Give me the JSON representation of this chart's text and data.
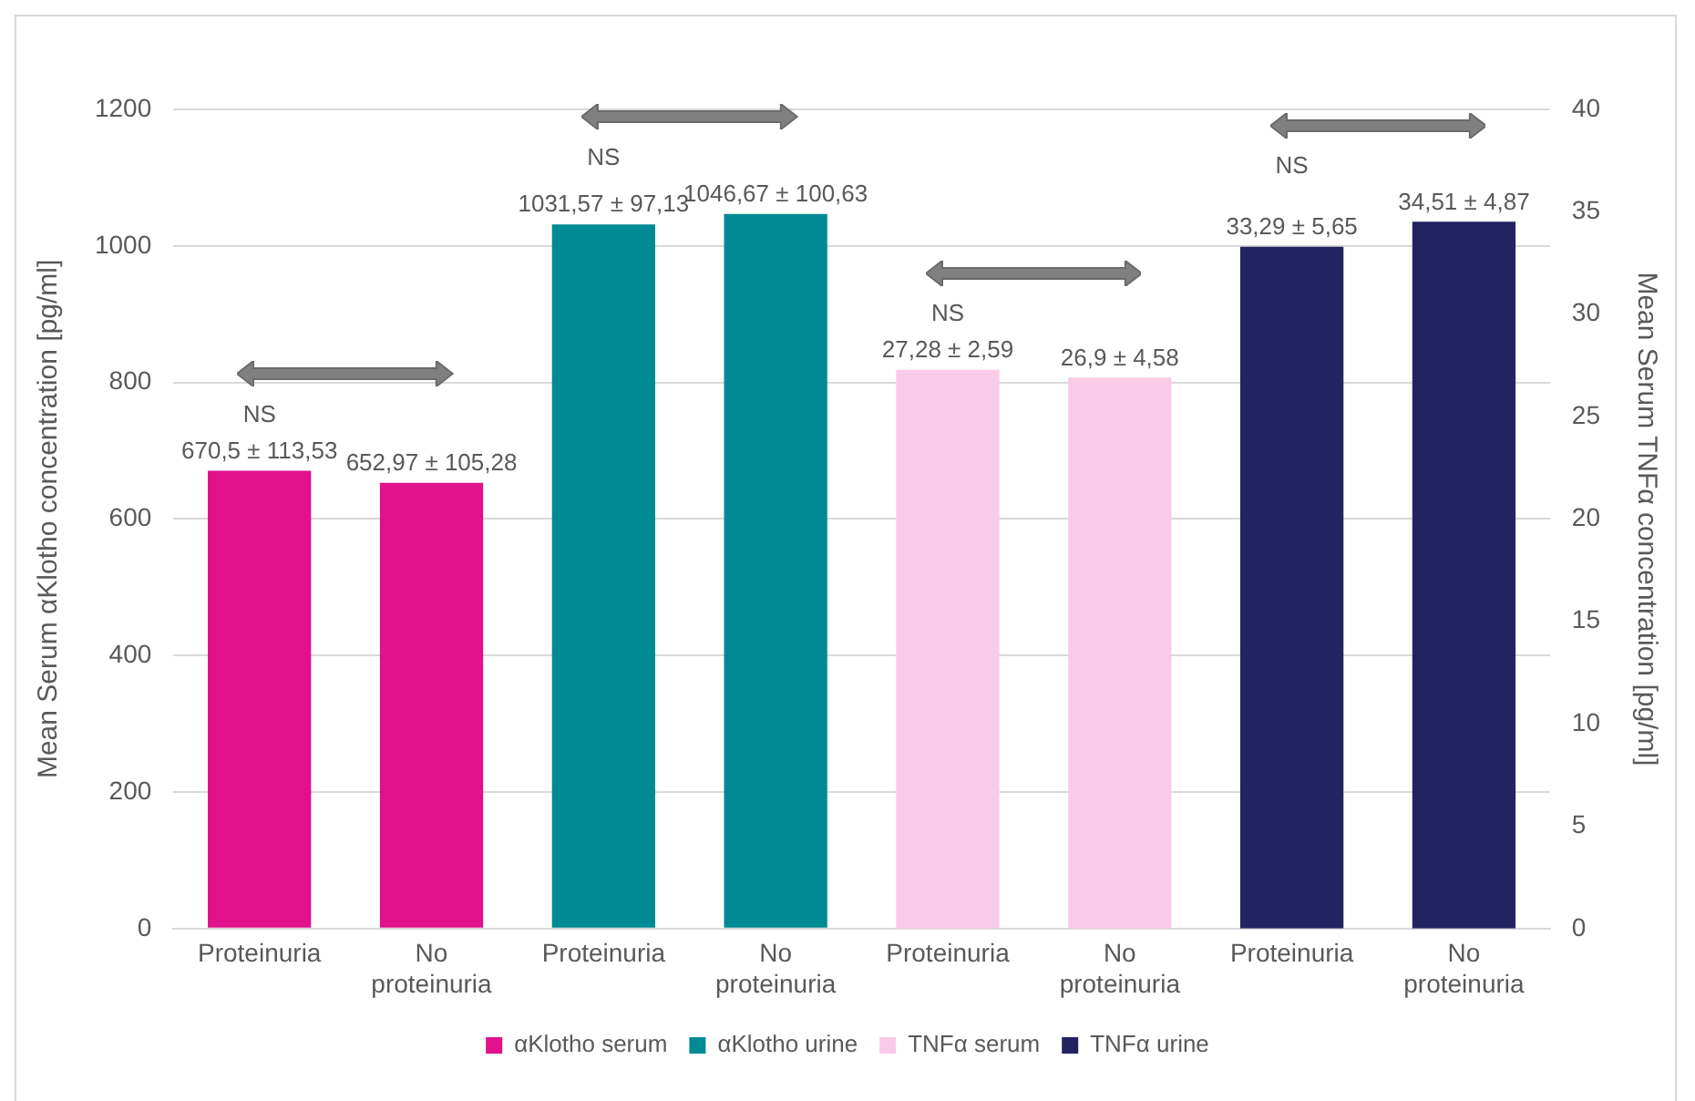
{
  "chart_data": {
    "type": "bar",
    "ylabel": "Mean Serum αKlotho concentration [pg/ml]",
    "y2label": "Mean Serum TNFα concentration [pg/ml]",
    "categories": [
      "Proteinuria",
      "No proteinuria",
      "Proteinuria",
      "No proteinuria",
      "Proteinuria",
      "No proteinuria",
      "Proteinuria",
      "No proteinuria"
    ],
    "series": [
      {
        "name": "αKlotho serum",
        "color": "#e0118a",
        "axis": "y",
        "values": [
          670.5,
          652.97,
          null,
          null,
          null,
          null,
          null,
          null
        ],
        "value_labels": [
          "670,5 ± 113,53",
          "652,97 ± 105,28",
          null,
          null,
          null,
          null,
          null,
          null
        ]
      },
      {
        "name": "αKlotho urine",
        "color": "#008a93",
        "axis": "y",
        "values": [
          null,
          null,
          1031.57,
          1046.67,
          null,
          null,
          null,
          null
        ],
        "value_labels": [
          null,
          null,
          "1031,57 ± 97,13",
          "1046,67 ± 100,63",
          null,
          null,
          null,
          null
        ]
      },
      {
        "name": "TNFα serum",
        "color": "#f9cbe6",
        "axis": "y2",
        "values": [
          null,
          null,
          null,
          null,
          27.28,
          26.9,
          null,
          null
        ],
        "value_labels": [
          null,
          null,
          null,
          null,
          "27,28 ± 2,59",
          "26,9 ± 4,58",
          null,
          null
        ]
      },
      {
        "name": "TNFα urine",
        "color": "#232361",
        "axis": "y2",
        "values": [
          null,
          null,
          null,
          null,
          null,
          null,
          33.29,
          34.51
        ],
        "value_labels": [
          null,
          null,
          null,
          null,
          null,
          null,
          "33,29 ± 5,65",
          "34,51 ± 4,87"
        ]
      }
    ],
    "annotations": [
      "NS",
      "NS",
      "NS",
      "NS"
    ],
    "ylim": [
      0,
      1200
    ],
    "yticks": [
      0,
      200,
      400,
      600,
      800,
      1000,
      1200
    ],
    "y2lim": [
      0,
      40
    ],
    "y2ticks": [
      0,
      5,
      10,
      15,
      20,
      25,
      30,
      35,
      40
    ],
    "grid": "y",
    "legend": "bottom"
  }
}
